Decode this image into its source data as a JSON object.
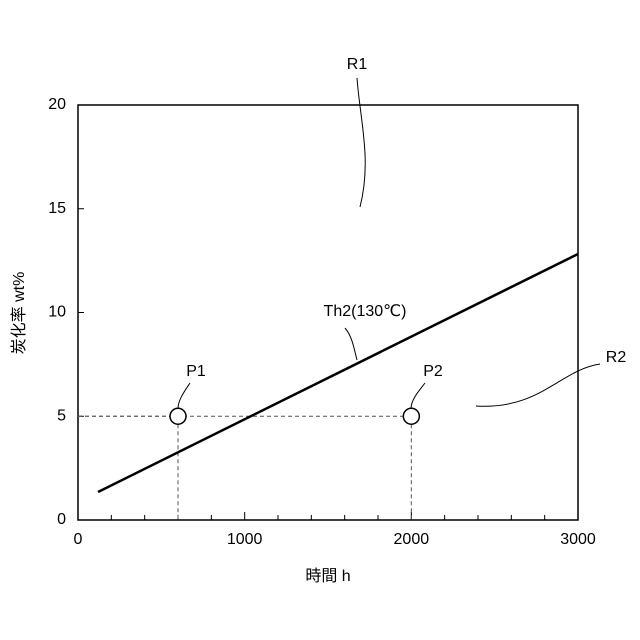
{
  "chart_data": {
    "type": "line",
    "x_label": "時間 h",
    "y_label": "炭化率 wt%",
    "xlim": [
      0,
      3000
    ],
    "ylim": [
      0,
      20
    ],
    "xticks": [
      0,
      1000,
      2000,
      3000
    ],
    "yticks": [
      0,
      5,
      10,
      15,
      20
    ],
    "x_minor_ticks": [
      200,
      400,
      600,
      800,
      1200,
      1400,
      1600,
      1800,
      2200,
      2400,
      2600,
      2800
    ],
    "series": [
      {
        "name": "Th2(130℃)",
        "color": "#000000",
        "x": [
          120,
          3000
        ],
        "values": [
          1.35,
          12.82
        ]
      }
    ],
    "points": [
      {
        "name": "P1",
        "x": 600,
        "y": 5
      },
      {
        "name": "P2",
        "x": 2000,
        "y": 5
      }
    ],
    "regions": [
      "R1",
      "R2"
    ]
  }
}
